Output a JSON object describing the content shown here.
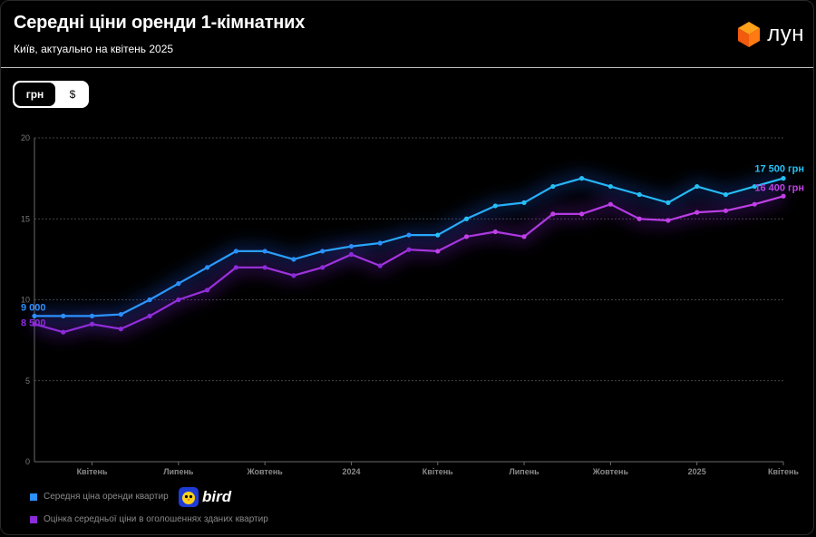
{
  "header": {
    "title": "Середні ціни оренди 1-кімнатних",
    "subtitle": "Київ, актуально на квітень 2025",
    "logo_text": "лун"
  },
  "toggle": {
    "active_label": "грн",
    "inactive_label": "$"
  },
  "legend": [
    {
      "label": "Середня ціна оренди квартир",
      "color": "#2b8fff"
    },
    {
      "label": "Оцінка середньої ціни в оголошеннях зданих квартир",
      "color": "#8c2bd9"
    }
  ],
  "bird_text": "bird",
  "colors": {
    "series1": "#2b8fff",
    "series2": "#8c2bd9",
    "label1": "#25c1f5",
    "label2": "#c140e6"
  },
  "chart_data": {
    "type": "line",
    "ylim": [
      0,
      20
    ],
    "yticks": [
      "0",
      "5",
      "10",
      "15",
      "20"
    ],
    "x_tick_labels": [
      {
        "label": "Квітень",
        "index": 2
      },
      {
        "label": "Липень",
        "index": 5
      },
      {
        "label": "Жовтень",
        "index": 8
      },
      {
        "label": "2024",
        "index": 11
      },
      {
        "label": "Квітень",
        "index": 14
      },
      {
        "label": "Липень",
        "index": 17
      },
      {
        "label": "Жовтень",
        "index": 20
      },
      {
        "label": "2025",
        "index": 23
      },
      {
        "label": "Квітень",
        "index": 26
      }
    ],
    "x_count": 27,
    "series": [
      {
        "values": [
          9.0,
          9.0,
          9.0,
          9.1,
          10.0,
          11.0,
          12.0,
          13.0,
          13.0,
          12.5,
          13.0,
          13.3,
          13.5,
          14.0,
          14.0,
          15.0,
          15.8,
          16.0,
          17.0,
          17.5,
          17.0,
          16.5,
          16.0,
          17.0,
          16.5,
          17.0,
          17.5
        ],
        "start_label": "9 000",
        "end_label": "17 500 грн"
      },
      {
        "values": [
          8.5,
          8.0,
          8.5,
          8.2,
          9.0,
          10.0,
          10.6,
          12.0,
          12.0,
          11.5,
          12.0,
          12.8,
          12.1,
          13.1,
          13.0,
          13.9,
          14.2,
          13.9,
          15.3,
          15.3,
          15.9,
          15.0,
          14.9,
          15.4,
          15.5,
          15.9,
          16.4
        ],
        "start_label": "8 500",
        "end_label": "16 400 грн"
      }
    ]
  }
}
